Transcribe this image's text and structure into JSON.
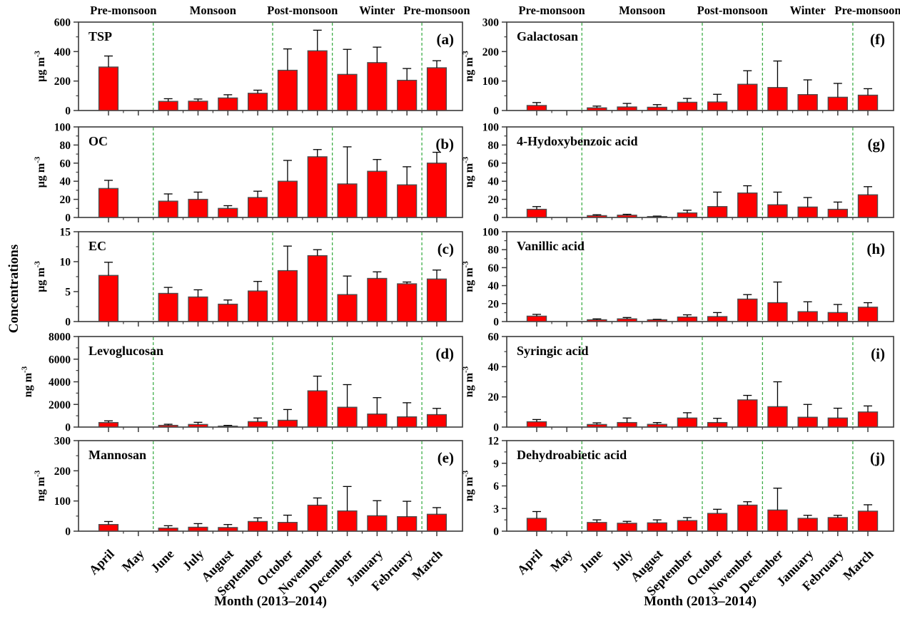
{
  "figure": {
    "ylabel": "Concentrations",
    "xlabel": "Month (2013–2014)",
    "months": [
      "April",
      "May",
      "June",
      "July",
      "August",
      "September",
      "October",
      "November",
      "December",
      "January",
      "February",
      "March"
    ],
    "seasons": [
      {
        "label": "Pre-monsoon",
        "from": 0,
        "to": 1
      },
      {
        "label": "Monsoon",
        "from": 2,
        "to": 5
      },
      {
        "label": "Post-monsoon",
        "from": 6,
        "to": 7
      },
      {
        "label": "Winter",
        "from": 8,
        "to": 10
      },
      {
        "label": "Pre-monsoon",
        "from": 11,
        "to": 11
      }
    ],
    "season_divider_after_month_index": [
      1,
      5,
      7,
      10
    ],
    "colors": {
      "bar_fill": "#FF0000",
      "bar_border": "#4D4D4D",
      "error_bar": "#000000",
      "axis": "#3A3A3A",
      "season_divider": "#3FAE49"
    }
  },
  "chart_data": {
    "type": "bar",
    "categories": [
      "April",
      "May",
      "June",
      "July",
      "August",
      "September",
      "October",
      "November",
      "December",
      "January",
      "February",
      "March"
    ],
    "note_error_bars": "upper standard deviation shown above each bar; May has no data in any panel",
    "panels": [
      {
        "id": "a",
        "letter": "(a)",
        "title": "TSP",
        "column": "left",
        "row": 0,
        "unit_base": "µg m",
        "unit_sup": "-3",
        "ylim": [
          0,
          600
        ],
        "yticks": [
          0,
          200,
          400,
          600
        ],
        "values": [
          295,
          null,
          62,
          63,
          85,
          117,
          273,
          405,
          245,
          325,
          205,
          290
        ],
        "errors": [
          75,
          null,
          18,
          15,
          22,
          21,
          145,
          140,
          170,
          105,
          80,
          48
        ]
      },
      {
        "id": "b",
        "letter": "(b)",
        "title": "OC",
        "column": "left",
        "row": 1,
        "unit_base": "µg m",
        "unit_sup": "-3",
        "ylim": [
          0,
          100
        ],
        "yticks": [
          0,
          20,
          40,
          60,
          80,
          100
        ],
        "values": [
          32,
          null,
          18,
          20,
          10,
          22,
          40,
          67,
          37,
          51,
          36,
          60
        ],
        "errors": [
          9,
          null,
          8,
          8,
          3,
          7,
          23,
          8,
          41,
          13,
          20,
          12
        ]
      },
      {
        "id": "c",
        "letter": "(c)",
        "title": "EC",
        "column": "left",
        "row": 2,
        "unit_base": "µg m",
        "unit_sup": "-3",
        "ylim": [
          0,
          15
        ],
        "yticks": [
          0,
          5,
          10,
          15
        ],
        "values": [
          7.7,
          null,
          4.7,
          4.1,
          2.9,
          5.1,
          8.5,
          11,
          4.5,
          7.2,
          6.3,
          7.1
        ],
        "errors": [
          2.2,
          null,
          1,
          1.2,
          0.7,
          1.6,
          4.1,
          1,
          3.1,
          1.1,
          0.3,
          1.5
        ]
      },
      {
        "id": "d",
        "letter": "(d)",
        "title": "Levoglucosan",
        "column": "left",
        "row": 3,
        "unit_base": "ng m",
        "unit_sup": "-3",
        "ylim": [
          0,
          8000
        ],
        "yticks": [
          0,
          2000,
          4000,
          6000,
          8000
        ],
        "values": [
          400,
          null,
          150,
          230,
          80,
          480,
          600,
          3200,
          1750,
          1150,
          900,
          1100
        ],
        "errors": [
          150,
          null,
          100,
          190,
          70,
          320,
          950,
          1300,
          2000,
          1450,
          1250,
          550
        ]
      },
      {
        "id": "e",
        "letter": "(e)",
        "title": "Mannosan",
        "column": "left",
        "row": 4,
        "unit_base": "ng m",
        "unit_sup": "-3",
        "ylim": [
          0,
          300
        ],
        "yticks": [
          0,
          100,
          200,
          300
        ],
        "values": [
          22,
          null,
          10,
          13,
          12,
          32,
          29,
          86,
          67,
          51,
          48,
          56
        ],
        "errors": [
          10,
          null,
          8,
          12,
          10,
          12,
          24,
          24,
          81,
          50,
          51,
          22
        ]
      },
      {
        "id": "f",
        "letter": "(f)",
        "title": "Galactosan",
        "column": "right",
        "row": 0,
        "unit_base": "ng m",
        "unit_sup": "-3",
        "ylim": [
          0,
          300
        ],
        "yticks": [
          0,
          100,
          200,
          300
        ],
        "values": [
          17,
          null,
          9,
          12,
          11,
          28,
          29,
          89,
          78,
          54,
          45,
          52
        ],
        "errors": [
          10,
          null,
          6,
          12,
          9,
          13,
          26,
          46,
          90,
          50,
          47,
          22
        ]
      },
      {
        "id": "g",
        "letter": "(g)",
        "title": "4-Hydoxybenzoic acid",
        "column": "right",
        "row": 1,
        "unit_base": "ng m",
        "unit_sup": "-3",
        "ylim": [
          0,
          100
        ],
        "yticks": [
          0,
          20,
          40,
          60,
          80,
          100
        ],
        "values": [
          9,
          null,
          2,
          2.5,
          1,
          5,
          12,
          27,
          14,
          11.5,
          9,
          25
        ],
        "errors": [
          3,
          null,
          1,
          1,
          0.5,
          3,
          16,
          8,
          14,
          10.5,
          8,
          9
        ]
      },
      {
        "id": "h",
        "letter": "(h)",
        "title": "Vanillic acid",
        "column": "right",
        "row": 2,
        "unit_base": "ng m",
        "unit_sup": "-3",
        "ylim": [
          0,
          100
        ],
        "yticks": [
          0,
          20,
          40,
          60,
          80,
          100
        ],
        "values": [
          6,
          null,
          2,
          3,
          2,
          5,
          5.5,
          25,
          21,
          11,
          10,
          16
        ],
        "errors": [
          2,
          null,
          1,
          1.5,
          0.5,
          2.5,
          4.5,
          5,
          23,
          11,
          9,
          5
        ]
      },
      {
        "id": "i",
        "letter": "(i)",
        "title": "Syringic acid",
        "column": "right",
        "row": 3,
        "unit_base": "ng m",
        "unit_sup": "-3",
        "ylim": [
          0,
          60
        ],
        "yticks": [
          0,
          20,
          40,
          60
        ],
        "values": [
          3.5,
          null,
          1.7,
          3,
          1.8,
          6,
          3,
          18,
          13.5,
          6.5,
          6,
          10
        ],
        "errors": [
          1.5,
          null,
          1.1,
          3,
          1.2,
          3.5,
          2.8,
          3,
          16.5,
          8.5,
          6.5,
          4
        ]
      },
      {
        "id": "j",
        "letter": "(j)",
        "title": "Dehydroabietic acid",
        "column": "right",
        "row": 4,
        "unit_base": "ng m",
        "unit_sup": "-3",
        "ylim": [
          0,
          12
        ],
        "yticks": [
          0,
          3,
          6,
          9,
          12
        ],
        "values": [
          1.7,
          null,
          1.15,
          1.05,
          1.1,
          1.4,
          2.35,
          3.45,
          2.8,
          1.7,
          1.8,
          2.65
        ],
        "errors": [
          0.9,
          null,
          0.35,
          0.25,
          0.4,
          0.4,
          0.55,
          0.45,
          2.9,
          0.4,
          0.3,
          0.85
        ]
      }
    ]
  }
}
